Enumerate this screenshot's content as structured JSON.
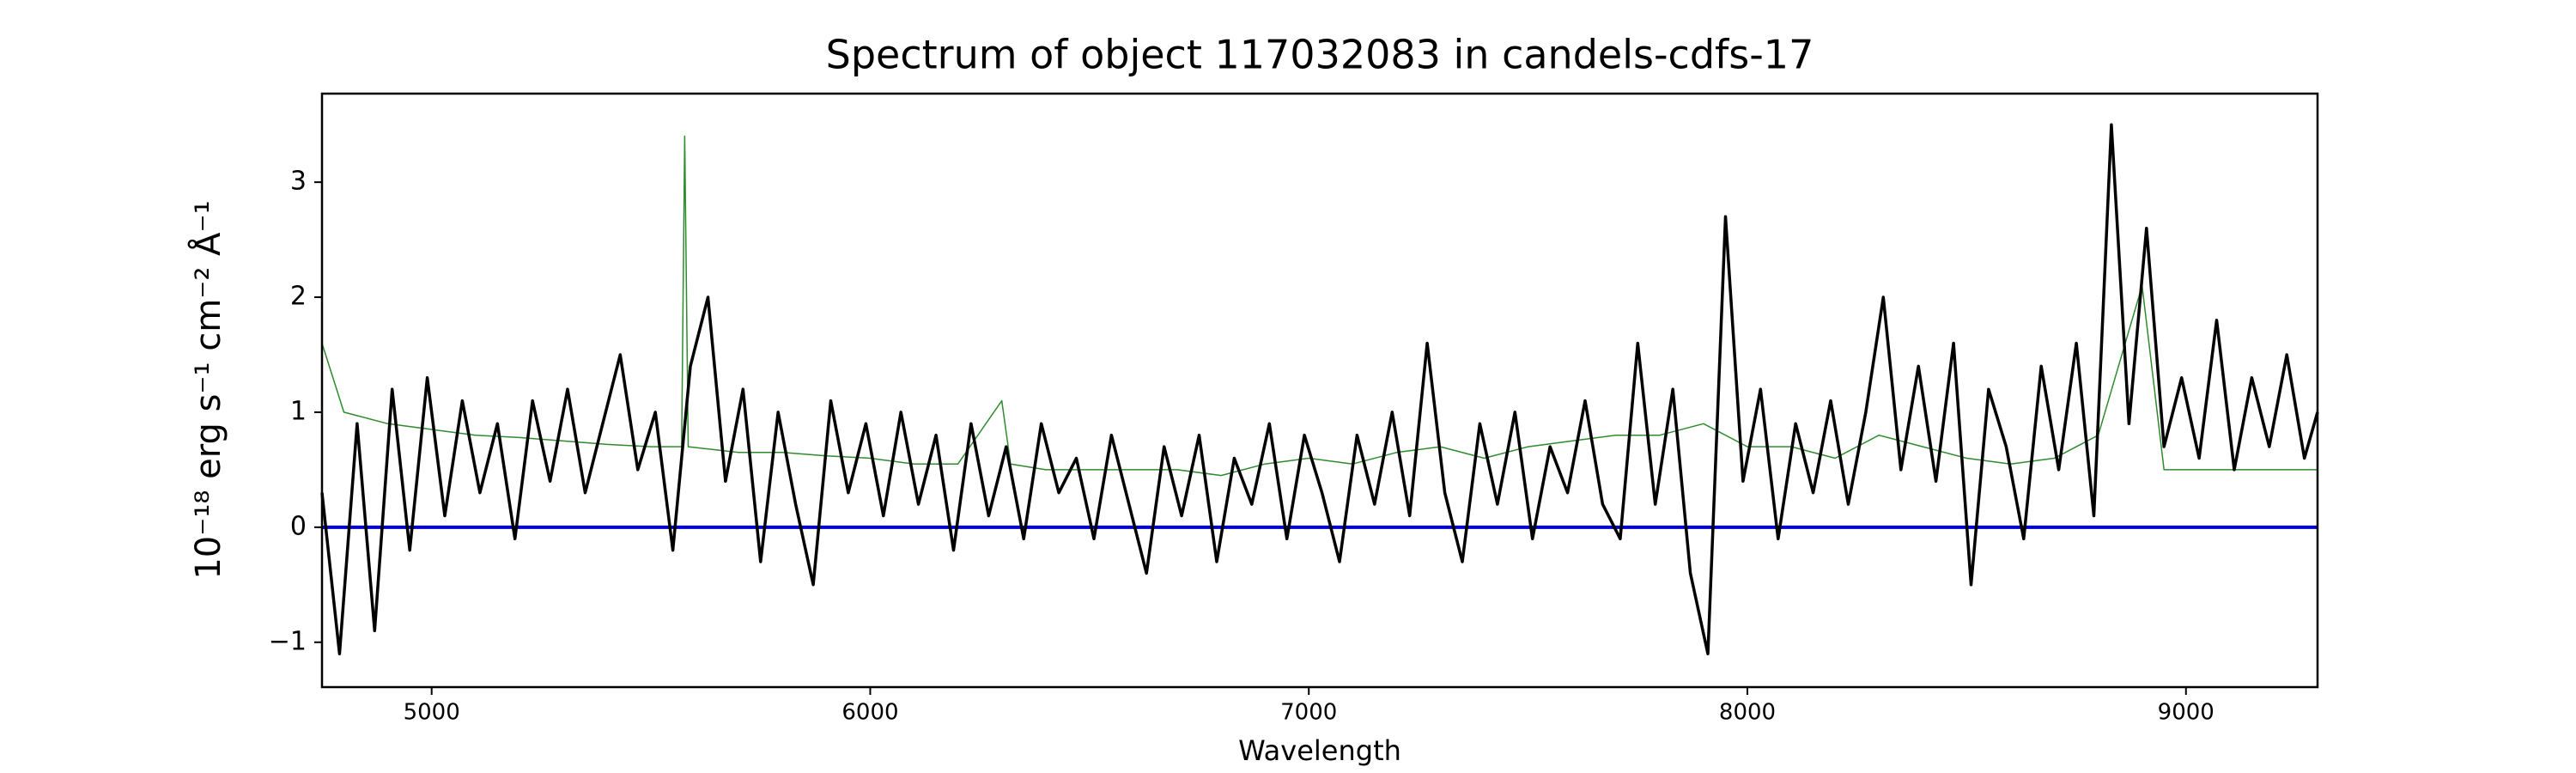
{
  "chart_data": {
    "type": "line",
    "title": "Spectrum of object 117032083 in candels-cdfs-17",
    "x_label": "Wavelength",
    "y_label": "10⁻¹⁸ erg s⁻¹ cm⁻² Å⁻¹",
    "xlim": [
      4750,
      9300
    ],
    "ylim": [
      -1.39,
      3.77
    ],
    "xticks": [
      5000,
      6000,
      7000,
      8000,
      9000
    ],
    "yticks": [
      -1,
      0,
      1,
      2,
      3
    ],
    "hline": {
      "y": 0,
      "color": "#0000cc"
    },
    "series": [
      {
        "color": "#2e8b2e",
        "width": 1.5,
        "x": [
          4750,
          4800,
          4900,
          5000,
          5100,
          5200,
          5300,
          5400,
          5500,
          5570,
          5577,
          5585,
          5700,
          5800,
          5900,
          6000,
          6100,
          6200,
          6300,
          6320,
          6400,
          6500,
          6600,
          6700,
          6800,
          6900,
          7000,
          7100,
          7200,
          7300,
          7400,
          7500,
          7600,
          7700,
          7800,
          7900,
          8000,
          8100,
          8200,
          8300,
          8400,
          8500,
          8600,
          8700,
          8800,
          8900,
          8950,
          9000,
          9100,
          9200,
          9300
        ],
        "values": [
          1.6,
          1.0,
          0.9,
          0.85,
          0.8,
          0.78,
          0.75,
          0.72,
          0.7,
          0.7,
          3.4,
          0.7,
          0.65,
          0.65,
          0.62,
          0.6,
          0.55,
          0.55,
          1.1,
          0.55,
          0.5,
          0.5,
          0.5,
          0.5,
          0.45,
          0.55,
          0.6,
          0.55,
          0.65,
          0.7,
          0.6,
          0.7,
          0.75,
          0.8,
          0.8,
          0.9,
          0.7,
          0.7,
          0.6,
          0.8,
          0.7,
          0.6,
          0.55,
          0.6,
          0.8,
          2.1,
          0.5,
          0.5,
          0.5,
          0.5,
          0.5
        ]
      },
      {
        "color": "#000000",
        "width": 3.5,
        "x": [
          4750,
          4790,
          4830,
          4870,
          4910,
          4950,
          4990,
          5030,
          5070,
          5110,
          5150,
          5190,
          5230,
          5270,
          5310,
          5350,
          5390,
          5430,
          5470,
          5510,
          5550,
          5590,
          5630,
          5670,
          5710,
          5750,
          5790,
          5830,
          5870,
          5910,
          5950,
          5990,
          6030,
          6070,
          6110,
          6150,
          6190,
          6230,
          6270,
          6310,
          6350,
          6390,
          6430,
          6470,
          6510,
          6550,
          6590,
          6630,
          6670,
          6710,
          6750,
          6790,
          6830,
          6870,
          6910,
          6950,
          6990,
          7030,
          7070,
          7110,
          7150,
          7190,
          7230,
          7270,
          7310,
          7350,
          7390,
          7430,
          7470,
          7510,
          7550,
          7590,
          7630,
          7670,
          7710,
          7750,
          7790,
          7830,
          7870,
          7910,
          7950,
          7990,
          8030,
          8070,
          8110,
          8150,
          8190,
          8230,
          8270,
          8310,
          8350,
          8390,
          8430,
          8470,
          8510,
          8550,
          8590,
          8630,
          8670,
          8710,
          8750,
          8790,
          8830,
          8870,
          8910,
          8950,
          8990,
          9030,
          9070,
          9110,
          9150,
          9190,
          9230,
          9270,
          9300
        ],
        "values": [
          0.3,
          -1.1,
          0.9,
          -0.9,
          1.2,
          -0.2,
          1.3,
          0.1,
          1.1,
          0.3,
          0.9,
          -0.1,
          1.1,
          0.4,
          1.2,
          0.3,
          0.9,
          1.5,
          0.5,
          1.0,
          -0.2,
          1.4,
          2.0,
          0.4,
          1.2,
          -0.3,
          1.0,
          0.2,
          -0.5,
          1.1,
          0.3,
          0.9,
          0.1,
          1.0,
          0.2,
          0.8,
          -0.2,
          0.9,
          0.1,
          0.7,
          -0.1,
          0.9,
          0.3,
          0.6,
          -0.1,
          0.8,
          0.2,
          -0.4,
          0.7,
          0.1,
          0.8,
          -0.3,
          0.6,
          0.2,
          0.9,
          -0.1,
          0.8,
          0.3,
          -0.3,
          0.8,
          0.2,
          1.0,
          0.1,
          1.6,
          0.3,
          -0.3,
          0.9,
          0.2,
          1.0,
          -0.1,
          0.7,
          0.3,
          1.1,
          0.2,
          -0.1,
          1.6,
          0.2,
          1.2,
          -0.4,
          -1.1,
          2.7,
          0.4,
          1.2,
          -0.1,
          0.9,
          0.3,
          1.1,
          0.2,
          1.0,
          2.0,
          0.5,
          1.4,
          0.4,
          1.6,
          -0.5,
          1.2,
          0.7,
          -0.1,
          1.4,
          0.5,
          1.6,
          0.1,
          3.5,
          0.9,
          2.6,
          0.7,
          1.3,
          0.6,
          1.8,
          0.5,
          1.3,
          0.7,
          1.5,
          0.6,
          1.0
        ]
      }
    ]
  }
}
